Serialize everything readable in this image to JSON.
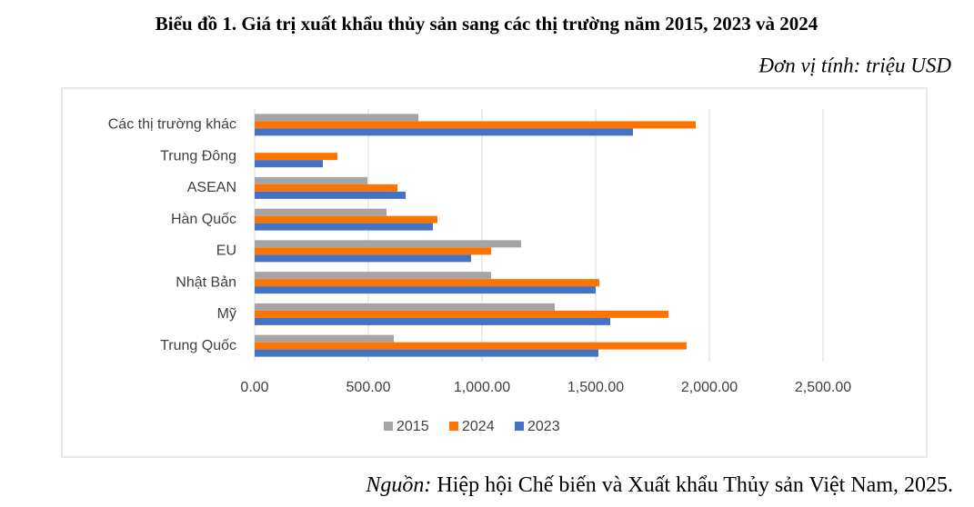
{
  "chart_data": {
    "type": "bar",
    "orientation": "horizontal",
    "title": "Biểu đồ 1. Giá trị xuất khẩu thủy sản sang các thị trường năm 2015, 2023 và 2024",
    "unit": "Đơn vị tính: triệu USD",
    "source_label": "Nguồn:",
    "source_text": "Hiệp hội Chế biến và Xuất khẩu Thủy sản Việt Nam, 2025.",
    "categories": [
      "Các thị trường khác",
      "Trung Đông",
      "ASEAN",
      "Hàn Quốc",
      "EU",
      "Nhật Bản",
      "Mỹ",
      "Trung Quốc"
    ],
    "series": [
      {
        "name": "2015",
        "color": "#a5a5a5",
        "values": [
          720,
          null,
          496,
          580,
          1172,
          1040,
          1320,
          612
        ]
      },
      {
        "name": "2024",
        "color": "#fe7400",
        "values": [
          1940,
          364,
          628,
          804,
          1040,
          1516,
          1820,
          1900
        ]
      },
      {
        "name": "2023",
        "color": "#4472c4",
        "values": [
          1664,
          300,
          664,
          784,
          952,
          1500,
          1564,
          1512
        ]
      }
    ],
    "xlim": [
      0,
      2500
    ],
    "xticks": [
      {
        "value": 0,
        "label": "0.00"
      },
      {
        "value": 500,
        "label": "500.00"
      },
      {
        "value": 1000,
        "label": "1,000.00"
      },
      {
        "value": 1500,
        "label": "1,500.00"
      },
      {
        "value": 2000,
        "label": "2,000.00"
      },
      {
        "value": 2500,
        "label": "2,500.00"
      }
    ],
    "grid": true,
    "legend": "bottom"
  }
}
